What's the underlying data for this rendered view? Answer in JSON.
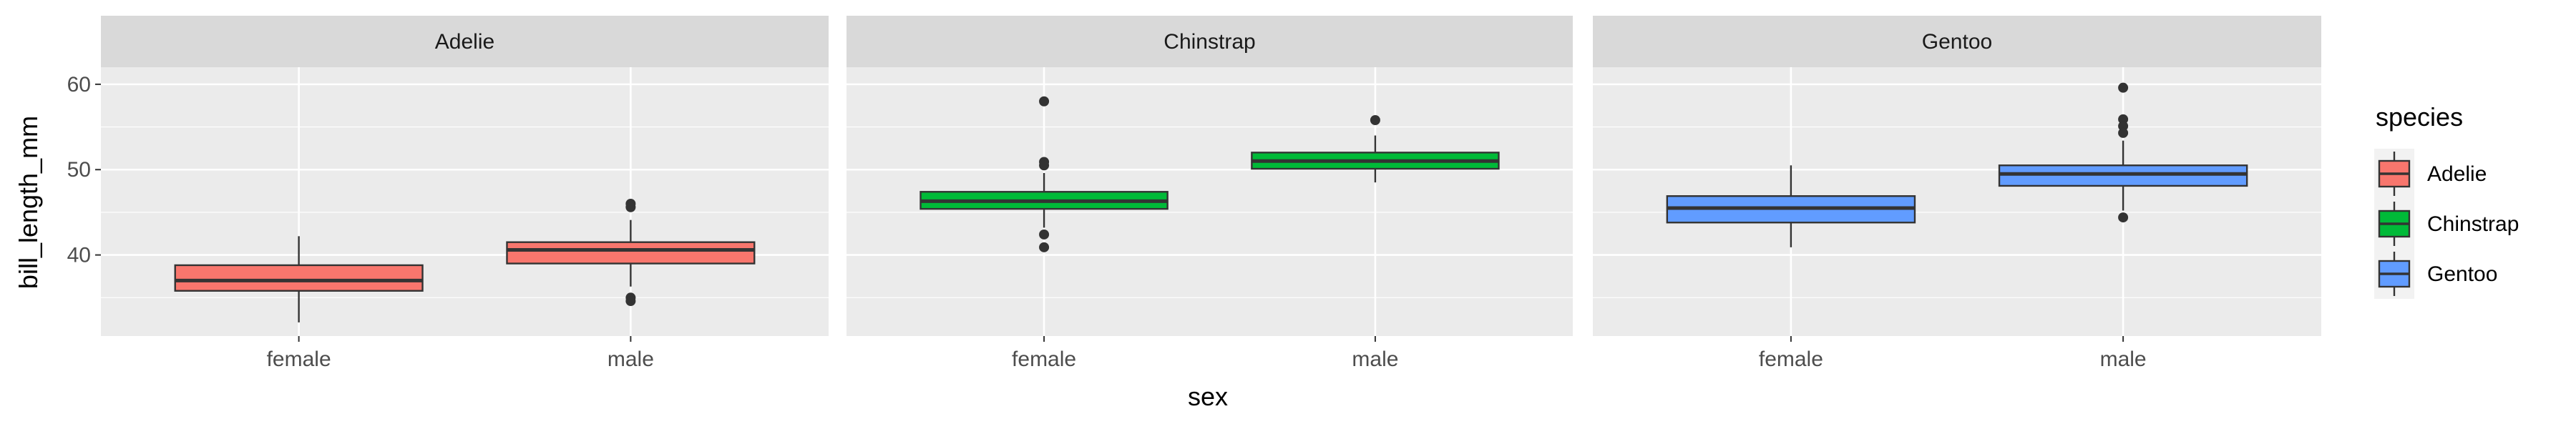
{
  "chart_data": {
    "type": "boxplot",
    "xlabel": "sex",
    "ylabel": "bill_length_mm",
    "ylim": [
      30.5,
      62
    ],
    "yticks": [
      40,
      50,
      60
    ],
    "categories": [
      "female",
      "male"
    ],
    "facets": [
      "Adelie",
      "Chinstrap",
      "Gentoo"
    ],
    "legend": {
      "title": "species",
      "position": "right",
      "entries": [
        {
          "label": "Adelie",
          "color": "#F8766D"
        },
        {
          "label": "Chinstrap",
          "color": "#00BA38"
        },
        {
          "label": "Gentoo",
          "color": "#619CFF"
        }
      ]
    },
    "boxes": [
      {
        "facet": "Adelie",
        "sex": "female",
        "min": 32.1,
        "q1": 35.8,
        "median": 37.0,
        "q3": 38.8,
        "max": 42.2,
        "outliers": []
      },
      {
        "facet": "Adelie",
        "sex": "male",
        "min": 36.3,
        "q1": 39.0,
        "median": 40.6,
        "q3": 41.5,
        "max": 44.1,
        "outliers": [
          46.0,
          45.6,
          35.0,
          34.6
        ]
      },
      {
        "facet": "Chinstrap",
        "sex": "female",
        "min": 43.2,
        "q1": 45.4,
        "median": 46.3,
        "q3": 47.4,
        "max": 49.6,
        "outliers": [
          58.0,
          50.9,
          50.5,
          42.4,
          40.9
        ]
      },
      {
        "facet": "Chinstrap",
        "sex": "male",
        "min": 48.5,
        "q1": 50.1,
        "median": 51.0,
        "q3": 52.0,
        "max": 54.0,
        "outliers": [
          55.8
        ]
      },
      {
        "facet": "Gentoo",
        "sex": "female",
        "min": 40.9,
        "q1": 43.8,
        "median": 45.5,
        "q3": 46.9,
        "max": 50.5,
        "outliers": []
      },
      {
        "facet": "Gentoo",
        "sex": "male",
        "min": 45.2,
        "q1": 48.1,
        "median": 49.5,
        "q3": 50.5,
        "max": 53.4,
        "outliers": [
          59.6,
          55.9,
          55.1,
          54.3,
          44.4
        ]
      }
    ]
  }
}
